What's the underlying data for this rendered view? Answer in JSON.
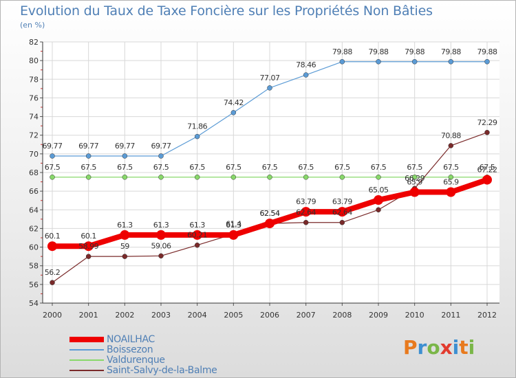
{
  "header": {
    "title": "Evolution du Taux de Taxe Foncière sur les Propriétés Non Bâties",
    "unit": "(en %)"
  },
  "brand": {
    "letters": [
      "P",
      "r",
      "o",
      "x",
      "i",
      "t",
      "i"
    ],
    "colors": [
      "#e87a1e",
      "#3d8fd1",
      "#7ab648",
      "#e23b2e",
      "#3d8fd1",
      "#e87a1e",
      "#7ab648"
    ]
  },
  "chart_data": {
    "type": "line",
    "x": [
      2000,
      2001,
      2002,
      2003,
      2004,
      2005,
      2006,
      2007,
      2008,
      2009,
      2010,
      2011,
      2012
    ],
    "ylim": [
      54,
      82
    ],
    "yticks": [
      54,
      56,
      58,
      60,
      62,
      64,
      66,
      68,
      70,
      72,
      74,
      76,
      78,
      80,
      82
    ],
    "series": [
      {
        "name": "NOAILHAC",
        "color": "#ee0000",
        "width": 8,
        "markerRadius": 7,
        "values": [
          60.1,
          60.1,
          61.3,
          61.3,
          61.3,
          61.3,
          62.54,
          63.79,
          63.79,
          65.05,
          65.9,
          65.9,
          67.22
        ],
        "labels": [
          "60.1",
          "60.1",
          "61.3",
          "61.3",
          "61.3",
          "61.3",
          "62.54",
          "63.79",
          "63.79",
          "65.05",
          "65.9",
          "65.9",
          "67.22"
        ]
      },
      {
        "name": "Boissezon",
        "color": "#5b9bd5",
        "width": 1.2,
        "markerRadius": 3.5,
        "values": [
          69.77,
          69.77,
          69.77,
          69.77,
          71.86,
          74.42,
          77.07,
          78.46,
          79.88,
          79.88,
          79.88,
          79.88,
          79.88
        ],
        "labels": [
          "69.77",
          "69.77",
          "69.77",
          "69.77",
          "71.86",
          "74.42",
          "77.07",
          "78.46",
          "79.88",
          "79.88",
          "79.88",
          "79.88",
          "79.88"
        ]
      },
      {
        "name": "Valdurenque",
        "color": "#88d86a",
        "width": 1.2,
        "markerRadius": 3.5,
        "values": [
          67.5,
          67.5,
          67.5,
          67.5,
          67.5,
          67.5,
          67.5,
          67.5,
          67.5,
          67.5,
          67.5,
          67.5,
          67.5
        ],
        "labels": [
          "67.5",
          "67.5",
          "67.5",
          "67.5",
          "67.5",
          "67.5",
          "67.5",
          "67.5",
          "67.5",
          "67.5",
          "67.5",
          "67.5",
          "67.5"
        ]
      },
      {
        "name": "Saint-Salvy-de-la-Balme",
        "color": "#7a2a2a",
        "width": 1.2,
        "markerRadius": 3.5,
        "values": [
          56.2,
          59,
          59,
          59.06,
          60.21,
          61.4,
          62.54,
          62.64,
          62.64,
          64,
          66.29,
          70.88,
          72.29
        ],
        "labels": [
          "56.2",
          "58.99",
          "59",
          "59.06",
          "60.21",
          "61.4",
          "62.54",
          "62.64",
          "62.64",
          "",
          "66.29",
          "70.88",
          "72.29"
        ]
      }
    ]
  }
}
